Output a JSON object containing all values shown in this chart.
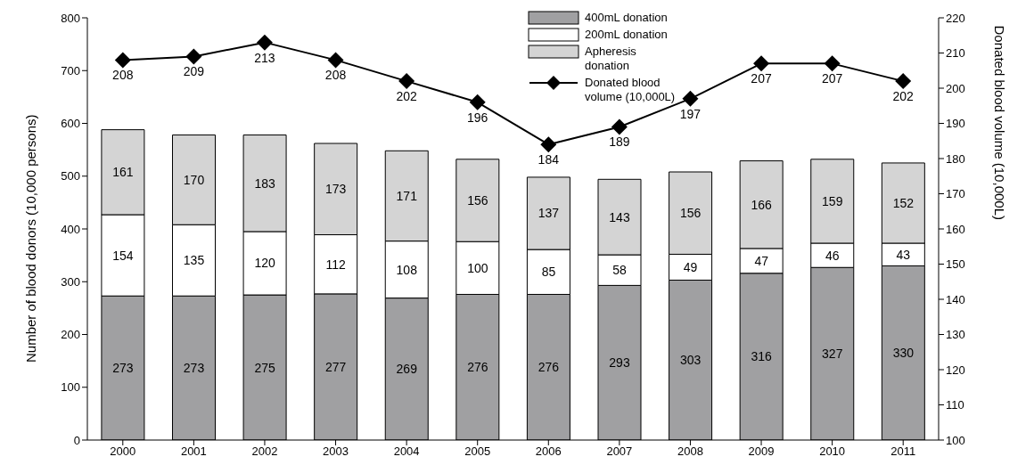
{
  "chart_data": {
    "type": "bar",
    "stacked": true,
    "categories": [
      "2000",
      "2001",
      "2002",
      "2003",
      "2004",
      "2005",
      "2006",
      "2007",
      "2008",
      "2009",
      "2010",
      "2011"
    ],
    "series": [
      {
        "name": "400mL donation",
        "color": "#a0a0a2",
        "values": [
          273,
          273,
          275,
          277,
          269,
          276,
          276,
          293,
          303,
          316,
          327,
          330
        ]
      },
      {
        "name": "200mL donation",
        "color": "#ffffff",
        "values": [
          154,
          135,
          120,
          112,
          108,
          100,
          85,
          58,
          49,
          47,
          46,
          43
        ]
      },
      {
        "name": "Apheresis donation",
        "color": "#d4d4d4",
        "values": [
          161,
          170,
          183,
          173,
          171,
          156,
          137,
          143,
          156,
          166,
          159,
          152
        ]
      },
      {
        "name": "Donated blood volume (10,000L)",
        "type": "line",
        "axis": "y2",
        "color": "#000000",
        "marker": "diamond",
        "values": [
          208,
          209,
          213,
          208,
          202,
          196,
          184,
          189,
          197,
          207,
          207,
          202
        ]
      }
    ],
    "ylabel": "Number of blood donors (10,000 persons)",
    "y2label": "Donated blood volume (10,000L)",
    "ylim": [
      0,
      800
    ],
    "yticks": [
      0,
      100,
      200,
      300,
      400,
      500,
      600,
      700,
      800
    ],
    "y2lim": [
      100,
      220
    ],
    "y2ticks": [
      100,
      110,
      120,
      130,
      140,
      150,
      160,
      170,
      180,
      190,
      200,
      210,
      220
    ],
    "data_labels": true,
    "legend": "top",
    "grid": false
  }
}
